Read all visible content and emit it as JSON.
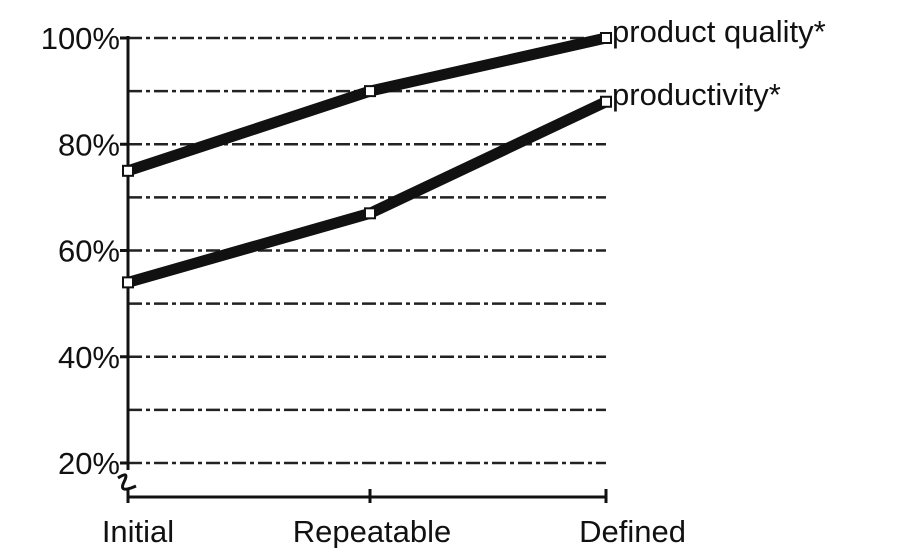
{
  "chart_data": {
    "type": "line",
    "title": "",
    "xlabel": "",
    "ylabel": "",
    "categories": [
      "Initial",
      "Repeatable",
      "Defined"
    ],
    "ylim": [
      20,
      100
    ],
    "y_ticks": [
      {
        "value": 20,
        "label": "20%"
      },
      {
        "value": 40,
        "label": "40%"
      },
      {
        "value": 60,
        "label": "60%"
      },
      {
        "value": 80,
        "label": "80%"
      },
      {
        "value": 100,
        "label": "100%"
      }
    ],
    "gridlines": [
      20,
      30,
      40,
      50,
      60,
      70,
      80,
      90,
      100
    ],
    "grid": true,
    "grid_style": "dash-dot",
    "axis_break": true,
    "series": [
      {
        "name": "product quality*",
        "values": [
          75,
          90,
          100
        ]
      },
      {
        "name": "productivity*",
        "values": [
          54,
          67,
          88
        ]
      }
    ],
    "legend": "labels at right end of each line",
    "colors": {
      "line": "#111111",
      "grid": "#222222",
      "background": "#ffffff"
    }
  }
}
